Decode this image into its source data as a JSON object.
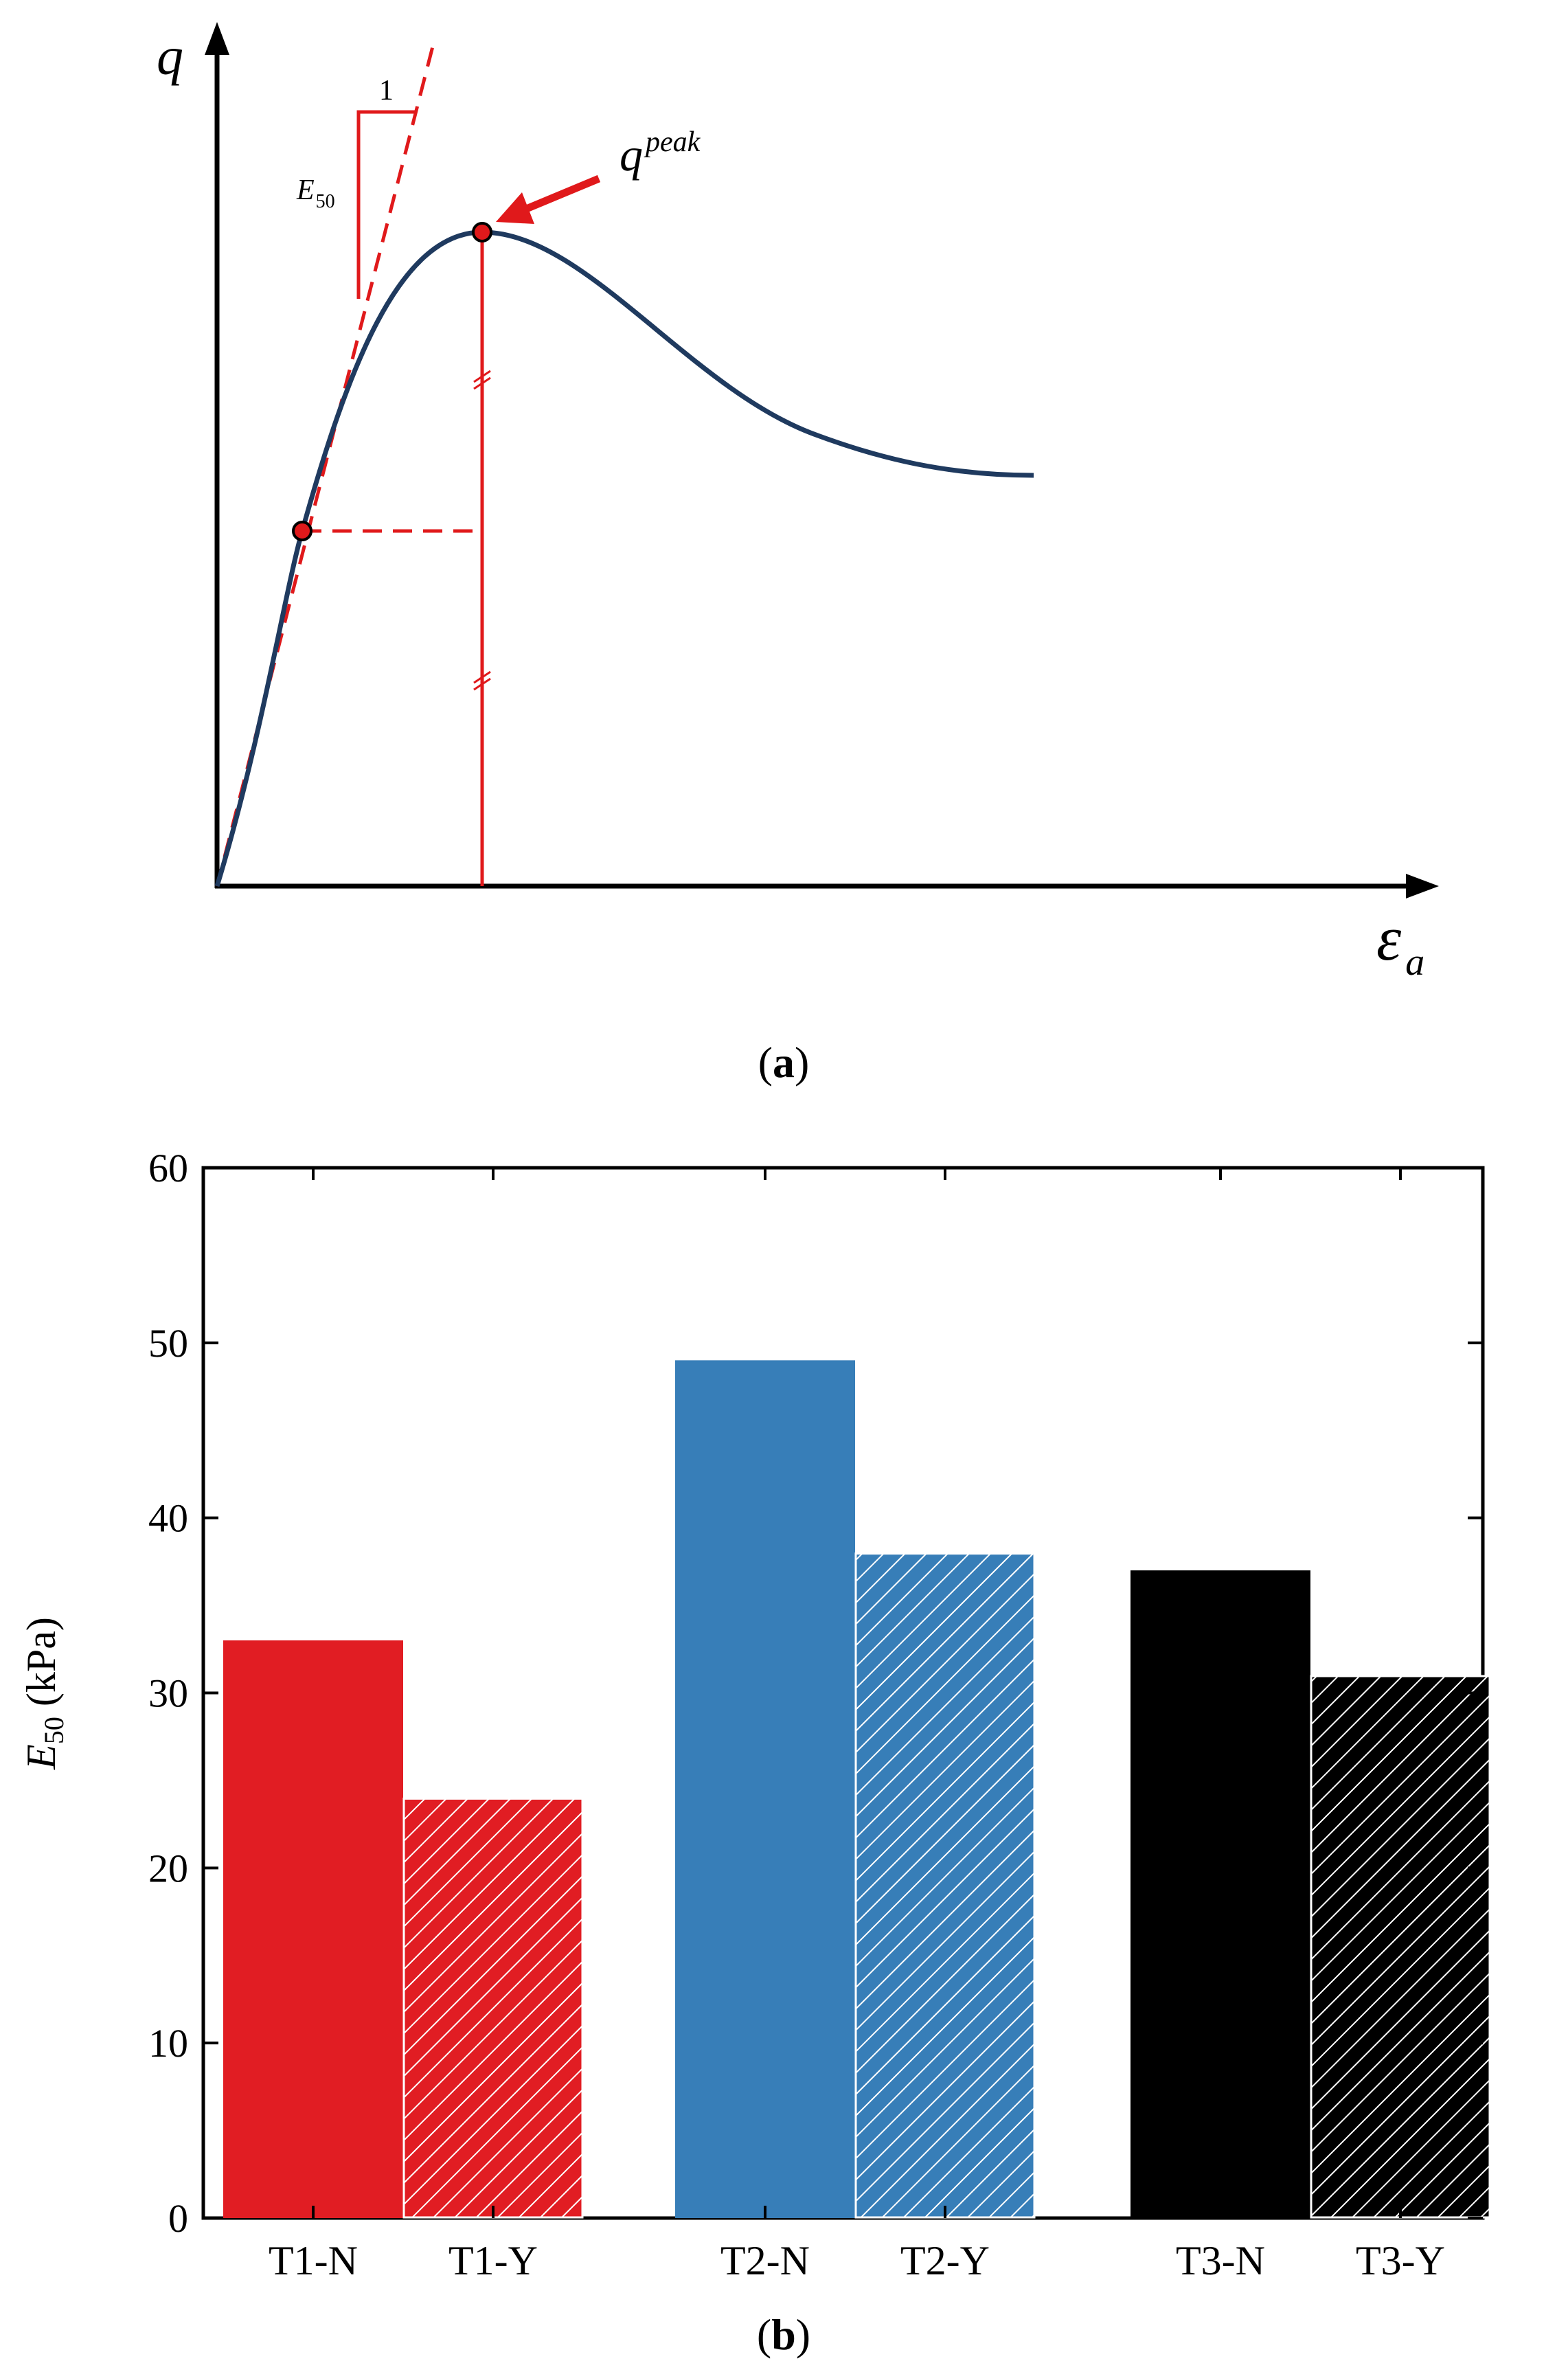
{
  "colors": {
    "axis": "#000000",
    "curve": "#1f3a5f",
    "guide": "#e0191b",
    "marker_fill": "#e0191b",
    "t1": "#e11d23",
    "t2": "#377eb8",
    "t3": "#000000",
    "hatch": "#ffffff"
  },
  "figure_a": {
    "y_axis_symbol": "q",
    "x_axis_symbol": "ε",
    "x_axis_subscript": "a",
    "slope_run_label": "1",
    "modulus_symbol": "E",
    "modulus_subscript": "50",
    "peak_symbol": "q",
    "peak_superscript": "peak",
    "caption": "(a)",
    "caption_letter": "a",
    "paren_open": "(",
    "paren_close": ")"
  },
  "chart_data": {
    "type": "bar",
    "title": "",
    "categories": [
      "T1-N",
      "T1-Y",
      "T2-N",
      "T2-Y",
      "T3-N",
      "T3-Y"
    ],
    "values": [
      33,
      24,
      49,
      38,
      37,
      31
    ],
    "groups": [
      {
        "name": "T1",
        "members": [
          "T1-N",
          "T1-Y"
        ],
        "color": "#e11d23"
      },
      {
        "name": "T2",
        "members": [
          "T2-N",
          "T2-Y"
        ],
        "color": "#377eb8"
      },
      {
        "name": "T3",
        "members": [
          "T3-N",
          "T3-Y"
        ],
        "color": "#000000"
      }
    ],
    "hatched": [
      false,
      true,
      false,
      true,
      false,
      true
    ],
    "xlabel": "",
    "ylabel_symbol": "E",
    "ylabel_subscript": "50",
    "ylabel_unit": " (kPa)",
    "ylim": [
      0,
      60
    ],
    "yticks": [
      0,
      10,
      20,
      30,
      40,
      50,
      60
    ],
    "grid": false,
    "caption": "(b)",
    "caption_letter": "b"
  }
}
